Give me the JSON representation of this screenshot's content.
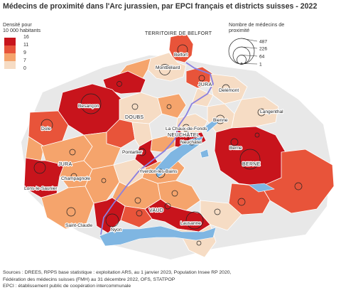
{
  "title": "Médecins de proximité dans l'Arc jurassien, par EPCI français et districts suisses - 2022",
  "density_legend": {
    "title_lines": [
      "Densité pour",
      "10 000 habitants"
    ],
    "breaks": [
      "16",
      "11",
      "9",
      "7",
      "0"
    ],
    "classes": [
      {
        "color": "#c8141c"
      },
      {
        "color": "#e8543a"
      },
      {
        "color": "#f5a46c"
      },
      {
        "color": "#f6dcc4"
      }
    ]
  },
  "size_legend": {
    "title_lines": [
      "Nombre de médecins de",
      "proximité"
    ],
    "values": [
      487,
      226,
      64,
      1
    ]
  },
  "places": {
    "territoire_de_belfort": "TERRITOIRE DE BELFORT",
    "belfort": "Belfort",
    "montbeliard": "Montbéliard",
    "jura_ch": "JURA",
    "delemont": "Delémont",
    "besancon": "Besançon",
    "doubs": "DOUBS",
    "dole": "Dole",
    "langenthal": "Langenthal",
    "neuchatel_canton": "NEUCHÂTEL",
    "la_chaux_de_fonds": "La Chaux-de-Fonds",
    "bienne": "Bienne",
    "neuchatel": "Neuchâtel",
    "berne": "BERNE",
    "berne_city": "Berne",
    "pontarlier": "Pontarlier",
    "jura_fr": "JURA",
    "champagnole": "Champagnole",
    "yverdon": "Yverdon-les-Bains",
    "lons": "Lons-le-Saunier",
    "saint_claude": "Saint-Claude",
    "vaud": "VAUD",
    "nyon": "Nyon",
    "lausanne": "Lausanne"
  },
  "colors": {
    "lake": "#7fb6e2",
    "border": "#8a7fe0",
    "outline": "#ffffff",
    "outside": "#e3e3e3"
  },
  "sources": [
    "Sources : DREES, RPPS base statistique : exploitation ARS, au 1 janvier 2023, Population Insee RP 2020,",
    "Fédération des médecins suisses (FMH) au 31 décembre 2022, OFS, STATPOP",
    "EPCI : établissement public de coopération intercommunale"
  ]
}
